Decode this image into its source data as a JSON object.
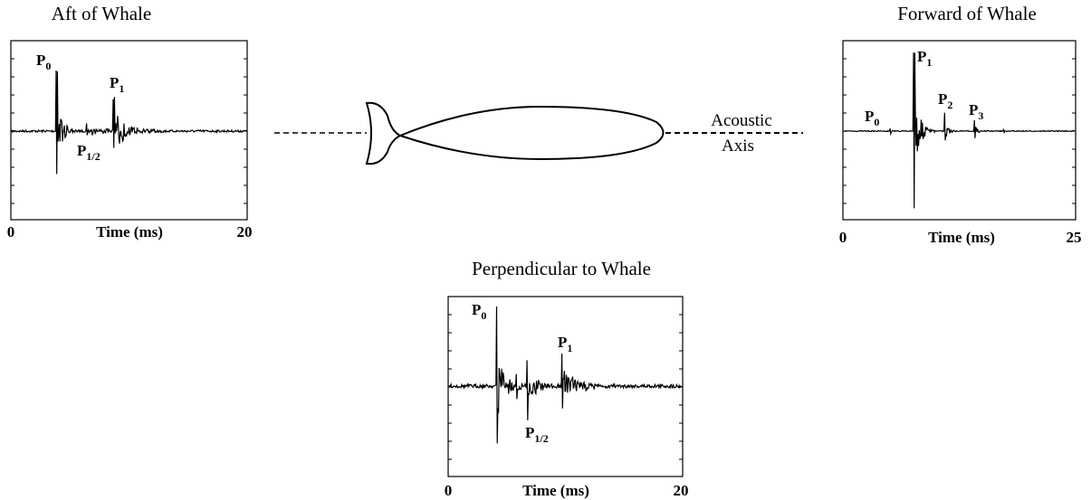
{
  "panels": [
    {
      "title": "Aft of Whale",
      "x_label": "Time (ms)",
      "x_start": "0",
      "x_end": "20",
      "peaks": [
        {
          "base": "P",
          "sub": "0"
        },
        {
          "base": "P",
          "sub": "1/2"
        },
        {
          "base": "P",
          "sub": "1"
        }
      ]
    },
    {
      "title": "Forward of Whale",
      "x_label": "Time (ms)",
      "x_start": "0",
      "x_end": "25",
      "peaks": [
        {
          "base": "P",
          "sub": "0"
        },
        {
          "base": "P",
          "sub": "1"
        },
        {
          "base": "P",
          "sub": "2"
        },
        {
          "base": "P",
          "sub": "3"
        }
      ]
    },
    {
      "title": "Perpendicular to Whale",
      "x_label": "Time (ms)",
      "x_start": "0",
      "x_end": "20",
      "peaks": [
        {
          "base": "P",
          "sub": "0"
        },
        {
          "base": "P",
          "sub": "1/2"
        },
        {
          "base": "P",
          "sub": "1"
        }
      ]
    }
  ],
  "axis_label": [
    "Acoustic",
    "Axis"
  ]
}
